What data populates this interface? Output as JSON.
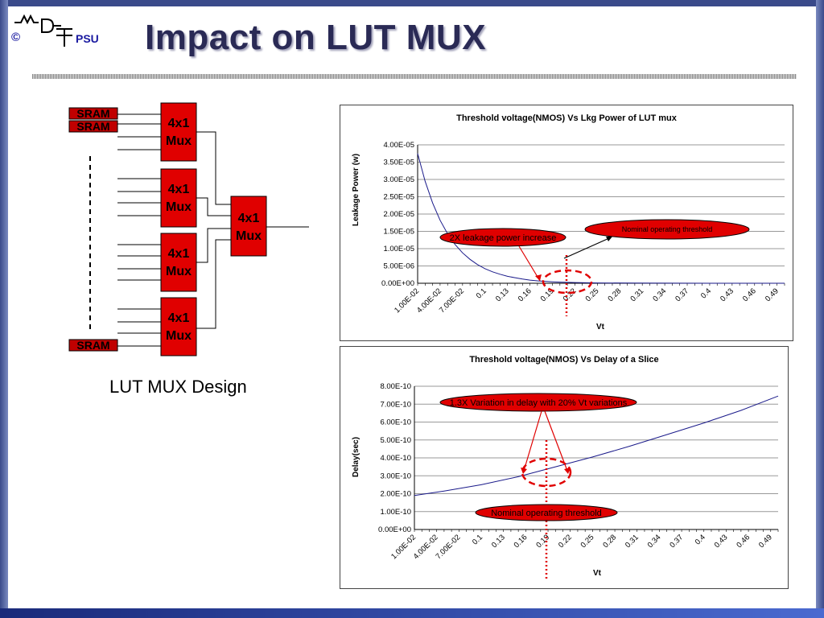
{
  "slide": {
    "title": "Impact on LUT MUX",
    "logo_copyright": "©",
    "logo_org": "PSU",
    "caption": "LUT MUX Design"
  },
  "diagram": {
    "sram_labels": [
      "SRAM",
      "SRAM",
      "SRAM"
    ],
    "mux_labels": [
      "4x1\nMux",
      "4x1\nMux",
      "4x1\nMux",
      "4x1\nMux",
      "4x1\nMux"
    ]
  },
  "colors": {
    "block_fill": "#e00000",
    "sram_fill": "#c00000",
    "curve": "#1a1a8a",
    "marker": "#e00000"
  },
  "chart_data": [
    {
      "type": "line",
      "title": "Threshold voltage(NMOS) Vs Lkg Power of LUT mux",
      "xlabel": "Vt",
      "ylabel": "Leakage Power (w)",
      "x_ticks": [
        "1.00E-02",
        "4.00E-02",
        "7.00E-02",
        "0.1",
        "0.13",
        "0.16",
        "0.19",
        "0.22",
        "0.25",
        "0.28",
        "0.31",
        "0.34",
        "0.37",
        "0.4",
        "0.43",
        "0.46",
        "0.49"
      ],
      "y_ticks": [
        "0.00E+00",
        "5.00E-06",
        "1.00E-05",
        "1.50E-05",
        "2.00E-05",
        "2.50E-05",
        "3.00E-05",
        "3.50E-05",
        "4.00E-05"
      ],
      "ylim": [
        0,
        4e-05
      ],
      "x": [
        0.01,
        0.02,
        0.03,
        0.04,
        0.05,
        0.06,
        0.07,
        0.08,
        0.09,
        0.1,
        0.11,
        0.12,
        0.13,
        0.14,
        0.15,
        0.16,
        0.17,
        0.18,
        0.19,
        0.2,
        0.21,
        0.22,
        0.25,
        0.3,
        0.35,
        0.4,
        0.45,
        0.5
      ],
      "y": [
        3.75e-05,
        2.95e-05,
        2.32e-05,
        1.82e-05,
        1.43e-05,
        1.12e-05,
        8.8e-06,
        6.9e-06,
        5.4e-06,
        4.2e-06,
        3.3e-06,
        2.6e-06,
        2e-06,
        1.6e-06,
        1.2e-06,
        9e-07,
        7e-07,
        5.5e-07,
        4.2e-07,
        3.2e-07,
        2.5e-07,
        2e-07,
        1e-07,
        4e-08,
        2e-08,
        1e-08,
        5e-09,
        2.5e-09
      ],
      "annotations": [
        "2X leakage power increase",
        "Nominal operating threshold"
      ]
    },
    {
      "type": "line",
      "title": "Threshold voltage(NMOS) Vs Delay of a Slice",
      "xlabel": "Vt",
      "ylabel": "Delay(sec)",
      "x_ticks": [
        "1.00E-02",
        "4.00E-02",
        "7.00E-02",
        "0.1",
        "0.13",
        "0.16",
        "0.19",
        "0.22",
        "0.25",
        "0.28",
        "0.31",
        "0.34",
        "0.37",
        "0.4",
        "0.43",
        "0.46",
        "0.49"
      ],
      "y_ticks": [
        "0.00E+00",
        "1.00E-10",
        "2.00E-10",
        "3.00E-10",
        "4.00E-10",
        "5.00E-10",
        "6.00E-10",
        "7.00E-10",
        "8.00E-10"
      ],
      "ylim": [
        0,
        8e-10
      ],
      "x": [
        0.01,
        0.05,
        0.1,
        0.15,
        0.2,
        0.25,
        0.3,
        0.35,
        0.4,
        0.45,
        0.5
      ],
      "y": [
        1.9e-10,
        2.15e-10,
        2.5e-10,
        2.95e-10,
        3.5e-10,
        4.05e-10,
        4.65e-10,
        5.3e-10,
        5.95e-10,
        6.65e-10,
        7.45e-10
      ],
      "annotations": [
        "1.3X Variation in delay with 20% Vt variations",
        "Nominal operating threshold"
      ]
    }
  ]
}
